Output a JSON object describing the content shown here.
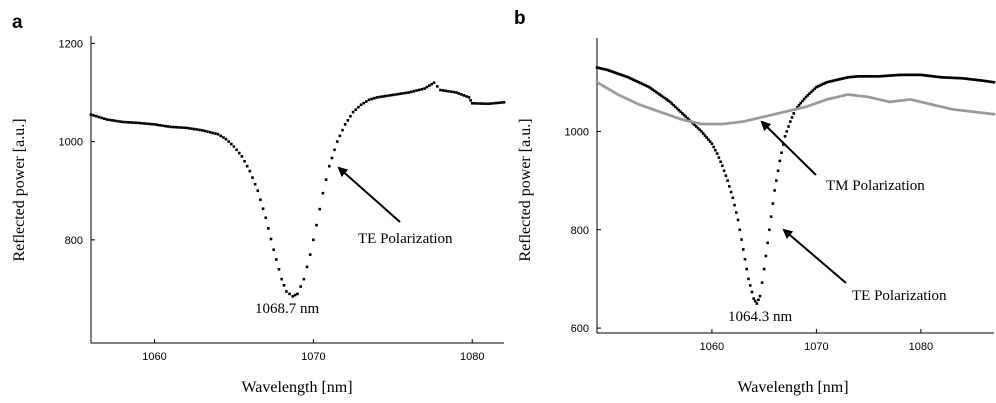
{
  "chart_data": [
    {
      "type": "scatter",
      "panel_label": "a",
      "xlabel": "Wavelength [nm]",
      "ylabel": "Reflected power [a.u.]",
      "xlim": [
        1056,
        1082
      ],
      "ylim": [
        590,
        1215
      ],
      "xticks": [
        1060,
        1070,
        1080
      ],
      "yticks": [
        800,
        1000,
        1200
      ],
      "grid": false,
      "series": [
        {
          "color": "#000000",
          "x": [
            1056,
            1057,
            1058,
            1059,
            1060,
            1061,
            1062,
            1063,
            1064,
            1064.5,
            1065,
            1065.5,
            1066,
            1066.5,
            1067,
            1067.5,
            1068,
            1068.3,
            1068.7,
            1069,
            1069.4,
            1069.8,
            1070.2,
            1070.6,
            1071,
            1071.5,
            1072,
            1072.5,
            1073,
            1073.5,
            1074,
            1075,
            1076,
            1077,
            1077.6,
            1078,
            1079,
            1079.8,
            1080,
            1081,
            1082
          ],
          "y": [
            1055,
            1045,
            1040,
            1038,
            1035,
            1030,
            1028,
            1023,
            1015,
            1005,
            990,
            970,
            940,
            900,
            845,
            780,
            720,
            695,
            685,
            690,
            720,
            770,
            830,
            895,
            950,
            1000,
            1035,
            1060,
            1075,
            1085,
            1090,
            1095,
            1100,
            1108,
            1120,
            1105,
            1100,
            1090,
            1078,
            1077,
            1080
          ]
        }
      ],
      "annotations": [
        {
          "text": "TE Polarization",
          "x": 1071.2,
          "y": 945
        },
        {
          "text": "1068.7 nm",
          "x": 1068.7,
          "y": 685
        }
      ]
    },
    {
      "type": "scatter",
      "panel_label": "b",
      "xlabel": "Wavelength [nm]",
      "ylabel": "Reflected power [a.u.]",
      "xlim": [
        1049,
        1087
      ],
      "ylim": [
        590,
        1190
      ],
      "xticks": [
        1060,
        1070,
        1080
      ],
      "yticks": [
        600,
        800,
        1000
      ],
      "grid": false,
      "series": [
        {
          "color": "#000000",
          "x": [
            1049,
            1050,
            1052,
            1054,
            1056,
            1057,
            1058,
            1059,
            1060,
            1060.5,
            1061,
            1061.5,
            1062,
            1062.5,
            1063,
            1063.5,
            1064,
            1064.3,
            1064.6,
            1065,
            1065.5,
            1066,
            1066.5,
            1067,
            1067.5,
            1068,
            1069,
            1070,
            1071,
            1072,
            1073,
            1074,
            1076,
            1078,
            1080,
            1082,
            1084,
            1086,
            1087
          ],
          "y": [
            1130,
            1125,
            1110,
            1090,
            1060,
            1040,
            1020,
            1000,
            975,
            955,
            930,
            900,
            865,
            820,
            760,
            700,
            660,
            650,
            665,
            720,
            800,
            880,
            940,
            990,
            1020,
            1045,
            1070,
            1090,
            1100,
            1105,
            1110,
            1112,
            1112,
            1115,
            1115,
            1110,
            1108,
            1103,
            1100
          ]
        },
        {
          "color": "#999999",
          "x": [
            1049,
            1051,
            1053,
            1055,
            1057,
            1059,
            1061,
            1063,
            1065,
            1067,
            1069,
            1071,
            1073,
            1075,
            1077,
            1079,
            1081,
            1083,
            1085,
            1087
          ],
          "y": [
            1100,
            1075,
            1055,
            1040,
            1025,
            1015,
            1015,
            1020,
            1030,
            1040,
            1050,
            1065,
            1075,
            1070,
            1060,
            1065,
            1055,
            1045,
            1040,
            1035
          ]
        }
      ],
      "annotations": [
        {
          "text": "TM Polarization",
          "x": 1064.5,
          "y": 1015
        },
        {
          "text": "TE Polarization",
          "x": 1066.3,
          "y": 795
        },
        {
          "text": "1064.3 nm",
          "x": 1064.3,
          "y": 650
        }
      ]
    }
  ]
}
